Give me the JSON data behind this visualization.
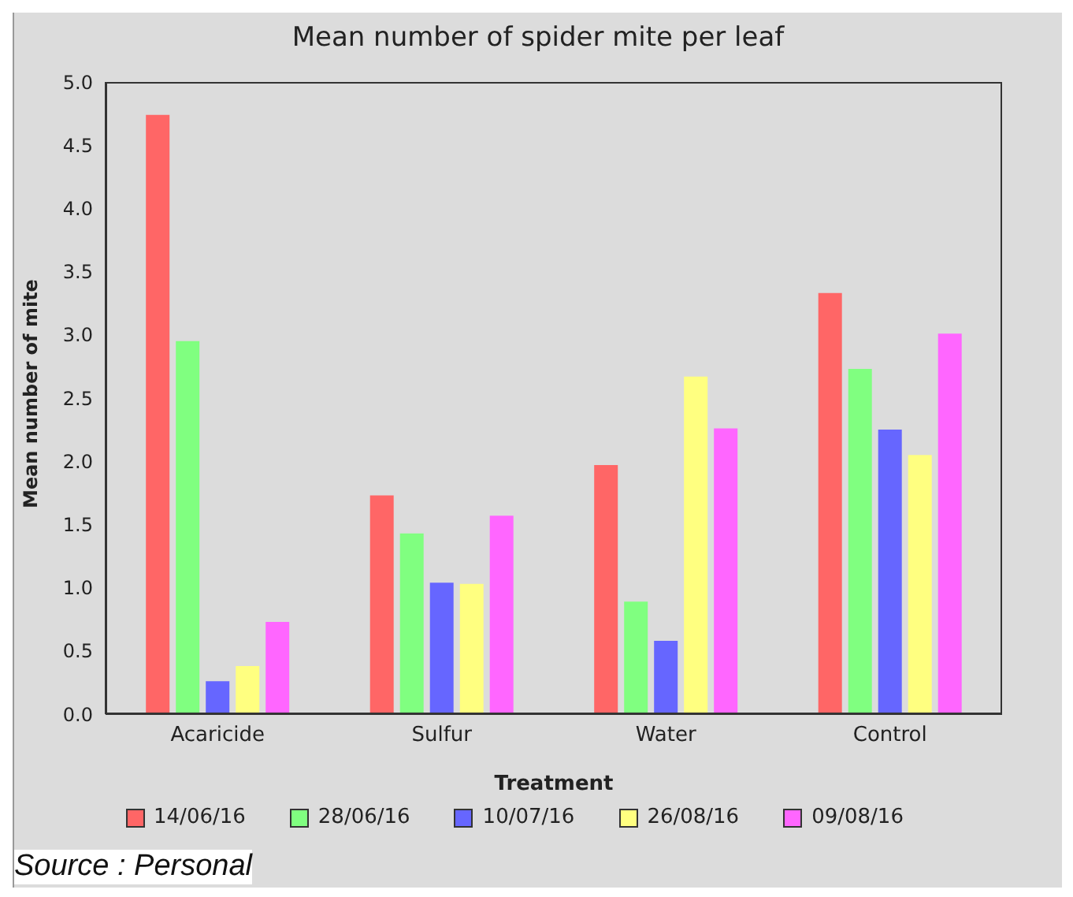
{
  "chart_data": {
    "type": "bar",
    "title": "Mean number of spider mite per leaf",
    "xlabel": "Treatment",
    "ylabel": "Mean number of mite",
    "categories": [
      "Acaricide",
      "Sulfur",
      "Water",
      "Control"
    ],
    "series": [
      {
        "name": "14/06/16",
        "color": "#ff6666",
        "values": [
          4.74,
          1.73,
          1.97,
          3.33
        ]
      },
      {
        "name": "28/06/16",
        "color": "#80ff80",
        "values": [
          2.95,
          1.43,
          0.89,
          2.73
        ]
      },
      {
        "name": "10/07/16",
        "color": "#6666ff",
        "values": [
          0.26,
          1.04,
          0.58,
          2.25
        ]
      },
      {
        "name": "26/08/16",
        "color": "#ffff80",
        "values": [
          0.38,
          1.03,
          2.67,
          2.05
        ]
      },
      {
        "name": "09/08/16",
        "color": "#ff66ff",
        "values": [
          0.73,
          1.57,
          2.26,
          3.01
        ]
      }
    ],
    "ylim": [
      0,
      5
    ],
    "yticks": [
      {
        "value": 0,
        "label": "0.0"
      },
      {
        "value": 0.5,
        "label": "0.5"
      },
      {
        "value": 1,
        "label": "1.0"
      },
      {
        "value": 1.5,
        "label": "1.5"
      },
      {
        "value": 2,
        "label": "2.0"
      },
      {
        "value": 2.5,
        "label": "2.5"
      },
      {
        "value": 3,
        "label": "3.0"
      },
      {
        "value": 3.5,
        "label": "3.5"
      },
      {
        "value": 4,
        "label": "4.0"
      },
      {
        "value": 4.5,
        "label": "4.5"
      },
      {
        "value": 5,
        "label": "5.0"
      }
    ],
    "grid": false,
    "legend": "bottom",
    "annotations": [
      "Source : Personal"
    ]
  }
}
